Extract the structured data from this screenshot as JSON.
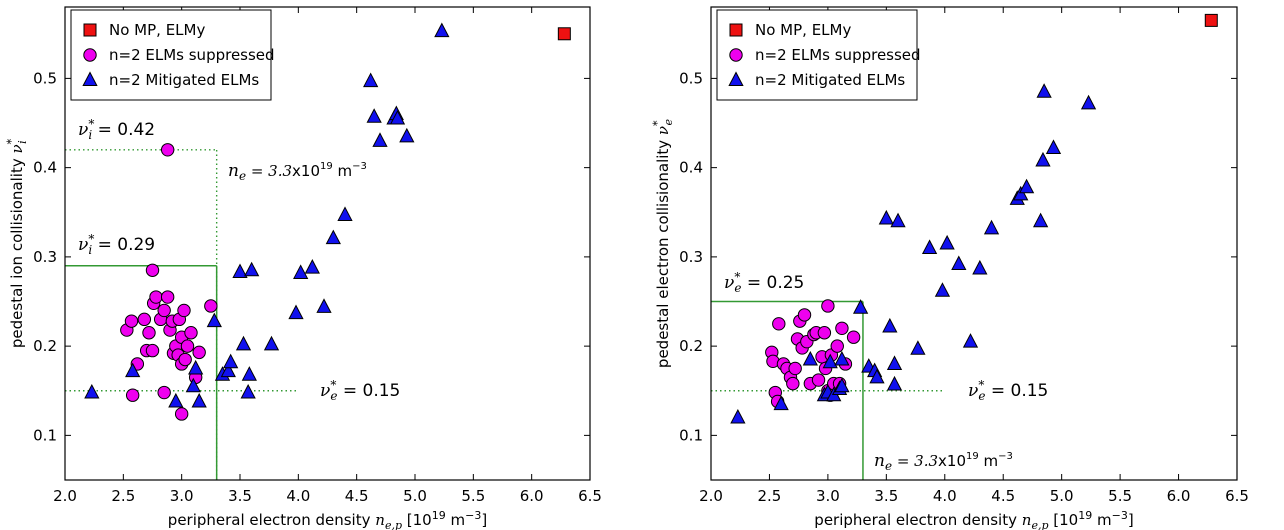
{
  "chart_data": [
    {
      "type": "scatter",
      "xlabel": "peripheral electron density",
      "xlabel_math": "n",
      "xlabel_sub": "e,p",
      "xlabel_units": "[10",
      "xlabel_units_sup": "19",
      "xlabel_units_tail": " m",
      "xlabel_units_sup2": "−3",
      "xlabel_units_close": "]",
      "ylabel": "pedestal ion collisionality",
      "ylabel_math": "ν",
      "ylabel_sup": "*",
      "ylabel_sub": "i",
      "xlim": [
        2.0,
        6.5
      ],
      "ylim": [
        0.05,
        0.58
      ],
      "xticks": [
        "2.0",
        "2.5",
        "3.0",
        "3.5",
        "4.0",
        "4.5",
        "5.0",
        "5.5",
        "6.0",
        "6.5"
      ],
      "yticks": [
        "0.1",
        "0.2",
        "0.3",
        "0.4",
        "0.5"
      ],
      "legend": {
        "placement": "upper-left",
        "entries": [
          "No MP, ELMy",
          "n=2 ELMs suppressed",
          "n=2 Mitigated ELMs"
        ]
      },
      "colors": {
        "square": "#ee1111",
        "circle": "#ee00ee",
        "triangle": "#1111ee",
        "line": "#339933"
      },
      "series": [
        {
          "name": "No MP, ELMy",
          "marker": "square",
          "points": [
            [
              6.28,
              0.55
            ]
          ]
        },
        {
          "name": "n=2 ELMs suppressed",
          "marker": "circle",
          "points": [
            [
              2.88,
              0.42
            ],
            [
              2.75,
              0.285
            ],
            [
              2.53,
              0.218
            ],
            [
              2.57,
              0.228
            ],
            [
              2.62,
              0.18
            ],
            [
              2.58,
              0.145
            ],
            [
              2.68,
              0.23
            ],
            [
              2.7,
              0.195
            ],
            [
              2.72,
              0.215
            ],
            [
              2.75,
              0.195
            ],
            [
              2.76,
              0.248
            ],
            [
              2.78,
              0.255
            ],
            [
              2.82,
              0.23
            ],
            [
              2.85,
              0.24
            ],
            [
              2.88,
              0.255
            ],
            [
              2.9,
              0.218
            ],
            [
              2.92,
              0.228
            ],
            [
              2.93,
              0.192
            ],
            [
              2.95,
              0.2
            ],
            [
              2.97,
              0.19
            ],
            [
              2.98,
              0.23
            ],
            [
              3.0,
              0.21
            ],
            [
              3.0,
              0.18
            ],
            [
              3.02,
              0.24
            ],
            [
              3.03,
              0.185
            ],
            [
              3.05,
              0.2
            ],
            [
              3.08,
              0.215
            ],
            [
              3.12,
              0.165
            ],
            [
              3.15,
              0.193
            ],
            [
              3.25,
              0.245
            ],
            [
              3.0,
              0.124
            ],
            [
              2.85,
              0.148
            ]
          ]
        },
        {
          "name": "n=2 Mitigated ELMs",
          "marker": "triangle",
          "points": [
            [
              2.23,
              0.148
            ],
            [
              2.58,
              0.172
            ],
            [
              2.95,
              0.138
            ],
            [
              3.1,
              0.155
            ],
            [
              3.12,
              0.175
            ],
            [
              3.15,
              0.138
            ],
            [
              3.28,
              0.228
            ],
            [
              3.35,
              0.168
            ],
            [
              3.4,
              0.172
            ],
            [
              3.42,
              0.182
            ],
            [
              3.5,
              0.283
            ],
            [
              3.53,
              0.202
            ],
            [
              3.57,
              0.148
            ],
            [
              3.58,
              0.168
            ],
            [
              3.6,
              0.285
            ],
            [
              3.77,
              0.202
            ],
            [
              3.98,
              0.237
            ],
            [
              4.02,
              0.282
            ],
            [
              4.12,
              0.288
            ],
            [
              4.22,
              0.244
            ],
            [
              4.3,
              0.321
            ],
            [
              4.4,
              0.347
            ],
            [
              4.62,
              0.497
            ],
            [
              4.65,
              0.457
            ],
            [
              4.7,
              0.43
            ],
            [
              4.82,
              0.455
            ],
            [
              4.84,
              0.46
            ],
            [
              4.85,
              0.455
            ],
            [
              4.93,
              0.435
            ],
            [
              5.23,
              0.553
            ]
          ]
        }
      ],
      "reference_lines": [
        {
          "style": "dotted",
          "y": 0.42,
          "x_to": 3.3
        },
        {
          "style": "dotted",
          "x": 3.3,
          "y_from": 0.05,
          "y_to": 0.42
        },
        {
          "style": "solid",
          "y": 0.29,
          "x_to": 3.3
        },
        {
          "style": "solid",
          "x": 3.3,
          "y_from": 0.05,
          "y_to": 0.29
        },
        {
          "style": "dotted",
          "y": 0.15,
          "x_to": 4.0
        }
      ],
      "annotations": [
        {
          "sym": "ν",
          "sub": "i",
          "text": "0.42"
        },
        {
          "sym": "ν",
          "sub": "i",
          "text": "0.29"
        },
        {
          "sym": "ν",
          "sub": "e",
          "text": "0.15"
        },
        {
          "sym": "n",
          "sub": "e",
          "value": "3.3",
          "text": "x10",
          "sup": "19",
          "tail": " m",
          "sup2": "−3"
        }
      ]
    },
    {
      "type": "scatter",
      "xlabel": "peripheral electron density",
      "xlabel_math": "n",
      "xlabel_sub": "e,p",
      "xlabel_units": "[10",
      "xlabel_units_sup": "19",
      "xlabel_units_tail": " m",
      "xlabel_units_sup2": "−3",
      "xlabel_units_close": "]",
      "ylabel": "pedestal electron collisionality",
      "ylabel_math": "ν",
      "ylabel_sup": "*",
      "ylabel_sub": "e",
      "xlim": [
        2.0,
        6.5
      ],
      "ylim": [
        0.05,
        0.58
      ],
      "xticks": [
        "2.0",
        "2.5",
        "3.0",
        "3.5",
        "4.0",
        "4.5",
        "5.0",
        "5.5",
        "6.0",
        "6.5"
      ],
      "yticks": [
        "0.1",
        "0.2",
        "0.3",
        "0.4",
        "0.5"
      ],
      "legend": {
        "placement": "upper-left",
        "entries": [
          "No MP, ELMy",
          "n=2 ELMs suppressed",
          "n=2 Mitigated ELMs"
        ]
      },
      "colors": {
        "square": "#ee1111",
        "circle": "#ee00ee",
        "triangle": "#1111ee",
        "line": "#339933"
      },
      "series": [
        {
          "name": "No MP, ELMy",
          "marker": "square",
          "points": [
            [
              6.28,
              0.565
            ]
          ]
        },
        {
          "name": "n=2 ELMs suppressed",
          "marker": "circle",
          "points": [
            [
              2.52,
              0.193
            ],
            [
              2.53,
              0.183
            ],
            [
              2.55,
              0.148
            ],
            [
              2.57,
              0.138
            ],
            [
              2.58,
              0.225
            ],
            [
              2.62,
              0.18
            ],
            [
              2.65,
              0.175
            ],
            [
              2.68,
              0.165
            ],
            [
              2.7,
              0.158
            ],
            [
              2.72,
              0.175
            ],
            [
              2.74,
              0.208
            ],
            [
              2.76,
              0.228
            ],
            [
              2.78,
              0.198
            ],
            [
              2.8,
              0.235
            ],
            [
              2.82,
              0.205
            ],
            [
              2.85,
              0.158
            ],
            [
              2.88,
              0.213
            ],
            [
              2.9,
              0.215
            ],
            [
              2.92,
              0.162
            ],
            [
              2.95,
              0.188
            ],
            [
              2.97,
              0.215
            ],
            [
              2.98,
              0.175
            ],
            [
              3.0,
              0.245
            ],
            [
              3.0,
              0.15
            ],
            [
              3.02,
              0.145
            ],
            [
              3.03,
              0.19
            ],
            [
              3.05,
              0.158
            ],
            [
              3.08,
              0.2
            ],
            [
              3.1,
              0.158
            ],
            [
              3.12,
              0.22
            ],
            [
              3.15,
              0.18
            ],
            [
              3.22,
              0.21
            ]
          ]
        },
        {
          "name": "n=2 Mitigated ELMs",
          "marker": "triangle",
          "points": [
            [
              2.23,
              0.12
            ],
            [
              2.6,
              0.135
            ],
            [
              2.85,
              0.185
            ],
            [
              2.97,
              0.145
            ],
            [
              3.0,
              0.148
            ],
            [
              3.02,
              0.182
            ],
            [
              3.05,
              0.145
            ],
            [
              3.1,
              0.152
            ],
            [
              3.12,
              0.155
            ],
            [
              3.12,
              0.185
            ],
            [
              3.28,
              0.243
            ],
            [
              3.35,
              0.177
            ],
            [
              3.4,
              0.172
            ],
            [
              3.42,
              0.165
            ],
            [
              3.5,
              0.343
            ],
            [
              3.53,
              0.222
            ],
            [
              3.57,
              0.18
            ],
            [
              3.57,
              0.157
            ],
            [
              3.6,
              0.34
            ],
            [
              3.77,
              0.197
            ],
            [
              3.87,
              0.31
            ],
            [
              3.98,
              0.262
            ],
            [
              4.02,
              0.315
            ],
            [
              4.12,
              0.292
            ],
            [
              4.22,
              0.205
            ],
            [
              4.3,
              0.287
            ],
            [
              4.4,
              0.332
            ],
            [
              4.62,
              0.365
            ],
            [
              4.65,
              0.37
            ],
            [
              4.7,
              0.378
            ],
            [
              4.82,
              0.34
            ],
            [
              4.84,
              0.408
            ],
            [
              4.85,
              0.485
            ],
            [
              4.93,
              0.422
            ],
            [
              5.23,
              0.472
            ]
          ]
        }
      ],
      "reference_lines": [
        {
          "style": "solid",
          "y": 0.25,
          "x_to": 3.3
        },
        {
          "style": "solid",
          "x": 3.3,
          "y_from": 0.05,
          "y_to": 0.25
        },
        {
          "style": "dotted",
          "y": 0.15,
          "x_to": 4.0
        }
      ],
      "annotations": [
        {
          "sym": "ν",
          "sub": "e",
          "text": "0.25"
        },
        {
          "sym": "ν",
          "sub": "e",
          "text": "0.15"
        },
        {
          "sym": "n",
          "sub": "e",
          "value": "3.3",
          "text": "x10",
          "sup": "19",
          "tail": " m",
          "sup2": "−3"
        }
      ]
    }
  ]
}
